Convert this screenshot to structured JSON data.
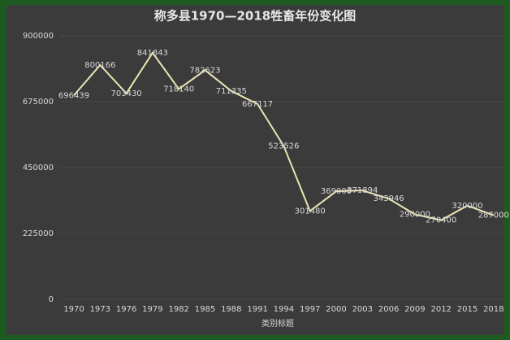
{
  "chart_data": {
    "type": "line",
    "title": "称多县1970—2018牲畜年份变化图",
    "x_label": "类别标题",
    "categories": [
      "1970",
      "1973",
      "1976",
      "1979",
      "1982",
      "1985",
      "1988",
      "1991",
      "1994",
      "1997",
      "2000",
      "2003",
      "2006",
      "2009",
      "2012",
      "2015",
      "2018"
    ],
    "values": [
      696439,
      800166,
      703430,
      841843,
      718140,
      782623,
      711335,
      667117,
      523526,
      301480,
      369000,
      371894,
      343946,
      290000,
      270400,
      320000,
      287000
    ],
    "color": "#ebe6b4",
    "ylim": [
      0,
      900000
    ],
    "yticks": [
      0,
      225000,
      450000,
      675000,
      900000
    ],
    "grid": true
  }
}
